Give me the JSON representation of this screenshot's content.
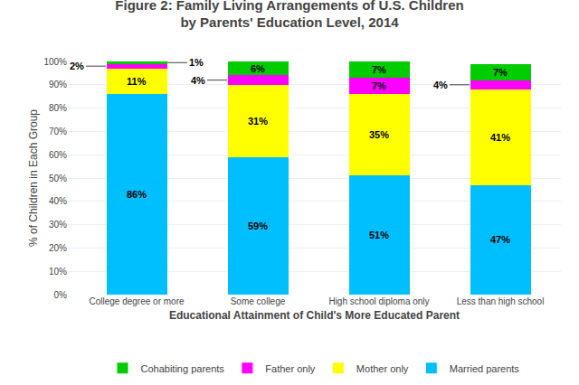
{
  "chart_data": {
    "type": "bar",
    "title": "Figure 2: Family Living Arrangements of U.S. Children\nby Parents' Education Level, 2014",
    "xlabel": "Educational Attainment of Child's More Educated Parent",
    "ylabel": "% of Children in Each Group",
    "categories": [
      "College degree or more",
      "Some college",
      "High school diploma only",
      "Less than high school"
    ],
    "series": [
      {
        "name": "Married parents",
        "color": "#00BFFF",
        "values": [
          86,
          59,
          51,
          47
        ],
        "value_labels": [
          "86%",
          "59%",
          "51%",
          "47%"
        ]
      },
      {
        "name": "Mother only",
        "color": "#FFFF00",
        "values": [
          11,
          31,
          35,
          41
        ],
        "value_labels": [
          "11%",
          "31%",
          "35%",
          "41%"
        ]
      },
      {
        "name": "Father only",
        "color": "#FF00FF",
        "values": [
          2,
          4,
          7,
          4
        ],
        "value_labels": [
          "2%",
          "4%",
          "7%",
          "4%"
        ]
      },
      {
        "name": "Cohabiting parents",
        "color": "#00CC00",
        "values": [
          1,
          6,
          7,
          7
        ],
        "value_labels": [
          "1%",
          "6%",
          "7%",
          "7%"
        ]
      }
    ],
    "stacked": true,
    "data_labels": true,
    "ylim": [
      0,
      100
    ],
    "yticks": [
      {
        "value": 0,
        "label": "0%"
      },
      {
        "value": 10,
        "label": "10%"
      },
      {
        "value": 20,
        "label": "20%"
      },
      {
        "value": 30,
        "label": "30%"
      },
      {
        "value": 40,
        "label": "40%"
      },
      {
        "value": 50,
        "label": "50%"
      },
      {
        "value": 60,
        "label": "60%"
      },
      {
        "value": 70,
        "label": "70%"
      },
      {
        "value": 80,
        "label": "80%"
      },
      {
        "value": 90,
        "label": "90%"
      },
      {
        "value": 100,
        "label": "100%"
      }
    ],
    "grid": true,
    "legend": "bottom"
  }
}
